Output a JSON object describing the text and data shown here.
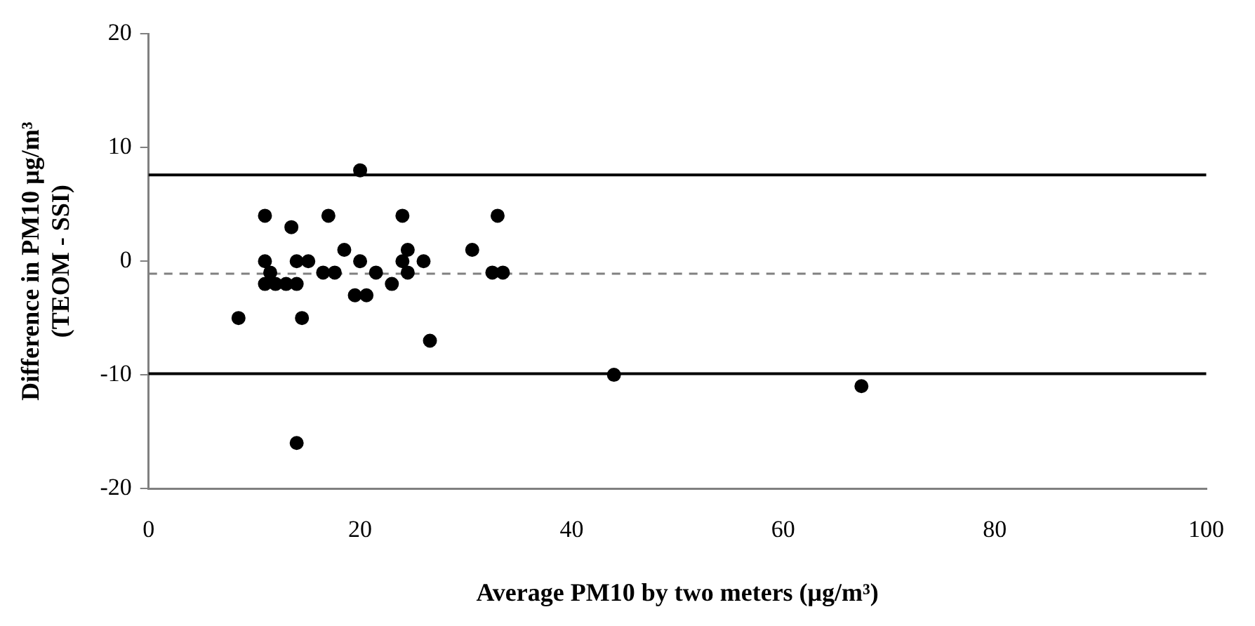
{
  "chart_data": {
    "type": "scatter",
    "xlabel": "Average PM10 by two meters (μg/m³)",
    "ylabel": "Difference in PM10 μg/m³\n(TEOM - SSI)",
    "x": [
      20,
      11,
      13.5,
      17,
      24,
      33,
      18.5,
      24.5,
      30.6,
      11,
      14,
      15.1,
      20,
      24,
      26,
      11.5,
      16.5,
      17.6,
      21.5,
      24.5,
      32.5,
      33.5,
      11,
      12,
      13,
      14,
      23,
      19.5,
      20.6,
      8.5,
      14.5,
      26.6,
      44,
      14,
      67.4
    ],
    "series": [
      {
        "color": "#000000",
        "values": [
          8,
          4,
          3,
          4,
          4,
          4,
          1,
          1,
          1,
          0,
          0,
          0,
          0,
          0,
          0,
          -1,
          -1,
          -1,
          -1,
          -1,
          -1,
          -1,
          -2,
          -2,
          -2,
          -2,
          -2,
          -3,
          -3,
          -5,
          -5,
          -7,
          -10,
          -16,
          -11
        ]
      }
    ],
    "xlim": [
      0,
      100
    ],
    "xticks": [
      0,
      20,
      40,
      60,
      80,
      100
    ],
    "ylim": [
      -20,
      20
    ],
    "yticks": [
      -20,
      -10,
      0,
      10,
      20
    ],
    "ref_lines": [
      {
        "axis": "y",
        "value": 7.6,
        "color": "#000000",
        "line_style": "solid"
      },
      {
        "axis": "y",
        "value": -9.9,
        "color": "#000000",
        "line_style": "solid"
      },
      {
        "axis": "y",
        "value": -1.1,
        "color": "#808080",
        "line_style": "dashed"
      }
    ],
    "marker": "circle",
    "grid": false,
    "legend": false
  }
}
